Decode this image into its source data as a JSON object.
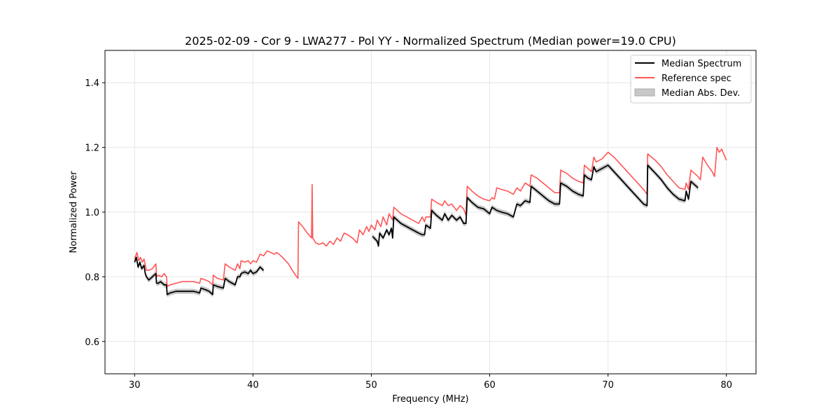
{
  "chart_data": {
    "type": "line",
    "title": "2025-02-09 - Cor 9 - LWA277 - Pol YY - Normalized Spectrum (Median power=19.0 CPU)",
    "xlabel": "Frequency (MHz)",
    "ylabel": "Normalized Power",
    "xlim": [
      27.5,
      82.5
    ],
    "ylim": [
      0.5,
      1.5
    ],
    "xticks": [
      30,
      40,
      50,
      60,
      70,
      80
    ],
    "yticks": [
      0.6,
      0.8,
      1.0,
      1.2,
      1.4
    ],
    "grid": true,
    "legend_position": "top-right",
    "colors": {
      "median": "#000000",
      "reference": "#ff5555",
      "mad": "#c8c8c8"
    },
    "series": [
      {
        "name": "Median Spectrum",
        "segments": [
          {
            "x": [
              30.0,
              30.15,
              30.3,
              30.45,
              30.6,
              30.8,
              30.9,
              31.0,
              31.2,
              31.5,
              31.8,
              31.85,
              32.0,
              32.2,
              32.5,
              32.7,
              32.75,
              33.0,
              33.5,
              34.0,
              34.5,
              35.0,
              35.5,
              35.6,
              36.0,
              36.3,
              36.6,
              36.65,
              37.0,
              37.5,
              37.65,
              38.0,
              38.5,
              38.7,
              38.9,
              39.0,
              39.3,
              39.6,
              39.8,
              40.0,
              40.3,
              40.6,
              40.9
            ],
            "y": [
              0.845,
              0.86,
              0.83,
              0.845,
              0.825,
              0.835,
              0.81,
              0.8,
              0.79,
              0.8,
              0.81,
              0.78,
              0.78,
              0.785,
              0.775,
              0.775,
              0.745,
              0.75,
              0.755,
              0.755,
              0.755,
              0.755,
              0.75,
              0.765,
              0.76,
              0.755,
              0.745,
              0.775,
              0.77,
              0.765,
              0.795,
              0.785,
              0.775,
              0.8,
              0.8,
              0.81,
              0.815,
              0.81,
              0.82,
              0.81,
              0.815,
              0.83,
              0.82
            ]
          },
          {
            "x": [
              50.1,
              50.5,
              50.6,
              50.7,
              51.0,
              51.3,
              51.5,
              51.7,
              51.8,
              51.9,
              52.5,
              53.0,
              53.5,
              54.0,
              54.3,
              54.5,
              54.6,
              55.0,
              55.1,
              55.5,
              56.0,
              56.2,
              56.5,
              56.8,
              57.2,
              57.5,
              57.8,
              58.0,
              58.1,
              58.5,
              59.0,
              59.5,
              60.0,
              60.2,
              60.4,
              60.6,
              61.0,
              61.5,
              62.0,
              62.3,
              62.6,
              63.0,
              63.4,
              63.5,
              64.0,
              64.5,
              65.0,
              65.5,
              65.9,
              66.0,
              66.5,
              67.0,
              67.5,
              67.9,
              68.0,
              68.3,
              68.6,
              68.8,
              69.0,
              69.5,
              70.0,
              70.5,
              71.0,
              71.5,
              72.0,
              72.5,
              73.0,
              73.3,
              73.35,
              74.0,
              74.5,
              75.0,
              75.5,
              76.0,
              76.5,
              76.6,
              76.8,
              77.0,
              77.3,
              77.6
            ],
            "y": [
              0.925,
              0.91,
              0.895,
              0.935,
              0.92,
              0.945,
              0.93,
              0.95,
              0.92,
              0.985,
              0.965,
              0.955,
              0.945,
              0.935,
              0.93,
              0.93,
              0.96,
              0.95,
              1.005,
              0.99,
              0.975,
              0.995,
              0.975,
              0.99,
              0.975,
              0.985,
              0.965,
              0.965,
              1.045,
              1.03,
              1.015,
              1.01,
              0.995,
              1.015,
              1.01,
              1.005,
              1.0,
              0.995,
              0.985,
              1.025,
              1.02,
              1.035,
              1.03,
              1.08,
              1.065,
              1.05,
              1.035,
              1.025,
              1.025,
              1.09,
              1.08,
              1.065,
              1.055,
              1.05,
              1.115,
              1.105,
              1.1,
              1.14,
              1.125,
              1.135,
              1.145,
              1.125,
              1.105,
              1.085,
              1.065,
              1.045,
              1.025,
              1.02,
              1.145,
              1.12,
              1.1,
              1.075,
              1.055,
              1.04,
              1.035,
              1.065,
              1.04,
              1.095,
              1.085,
              1.075
            ]
          }
        ]
      },
      {
        "name": "Reference spec",
        "x": [
          30.0,
          30.2,
          30.35,
          30.5,
          30.65,
          30.8,
          31.0,
          31.2,
          31.5,
          31.8,
          31.85,
          32.0,
          32.3,
          32.5,
          32.7,
          32.75,
          33.0,
          33.5,
          34.0,
          34.5,
          35.0,
          35.5,
          35.6,
          36.0,
          36.3,
          36.6,
          36.65,
          37.0,
          37.5,
          37.65,
          38.0,
          38.5,
          38.7,
          38.9,
          39.0,
          39.3,
          39.6,
          39.8,
          40.0,
          40.3,
          40.6,
          40.9,
          41.2,
          41.5,
          41.8,
          42.0,
          42.2,
          42.5,
          43.0,
          43.5,
          43.8,
          43.85,
          44.2,
          44.6,
          44.95,
          45.0,
          45.05,
          45.3,
          45.6,
          45.9,
          46.2,
          46.5,
          46.8,
          47.1,
          47.4,
          47.7,
          48.0,
          48.4,
          48.8,
          49.0,
          49.3,
          49.6,
          49.8,
          50.0,
          50.3,
          50.5,
          50.8,
          51.0,
          51.3,
          51.5,
          51.8,
          51.9,
          52.5,
          53.0,
          53.5,
          54.0,
          54.3,
          54.5,
          54.6,
          55.0,
          55.1,
          55.5,
          56.0,
          56.2,
          56.5,
          56.8,
          57.2,
          57.5,
          57.8,
          58.0,
          58.1,
          58.5,
          59.0,
          59.5,
          60.0,
          60.2,
          60.4,
          60.6,
          61.0,
          61.5,
          62.0,
          62.3,
          62.6,
          63.0,
          63.4,
          63.5,
          64.0,
          64.5,
          65.0,
          65.5,
          65.9,
          66.0,
          66.5,
          67.0,
          67.5,
          67.9,
          68.0,
          68.3,
          68.6,
          68.8,
          69.0,
          69.5,
          70.0,
          70.5,
          71.0,
          71.5,
          72.0,
          72.5,
          73.0,
          73.3,
          73.35,
          74.0,
          74.5,
          75.0,
          75.5,
          76.0,
          76.5,
          76.6,
          76.8,
          77.0,
          77.3,
          77.6,
          77.8,
          78.0,
          78.4,
          78.8,
          79.0,
          79.2,
          79.4,
          79.6,
          80.0
        ],
        "y": [
          0.855,
          0.875,
          0.85,
          0.86,
          0.845,
          0.855,
          0.82,
          0.82,
          0.825,
          0.84,
          0.8,
          0.805,
          0.8,
          0.81,
          0.8,
          0.77,
          0.775,
          0.78,
          0.785,
          0.785,
          0.785,
          0.78,
          0.795,
          0.79,
          0.785,
          0.775,
          0.805,
          0.795,
          0.79,
          0.84,
          0.83,
          0.82,
          0.84,
          0.825,
          0.85,
          0.845,
          0.85,
          0.84,
          0.85,
          0.845,
          0.87,
          0.865,
          0.88,
          0.875,
          0.87,
          0.875,
          0.87,
          0.86,
          0.84,
          0.81,
          0.795,
          0.97,
          0.955,
          0.935,
          0.92,
          1.085,
          0.92,
          0.905,
          0.9,
          0.905,
          0.895,
          0.91,
          0.9,
          0.92,
          0.91,
          0.935,
          0.93,
          0.92,
          0.905,
          0.945,
          0.93,
          0.955,
          0.94,
          0.96,
          0.945,
          0.975,
          0.955,
          0.985,
          0.96,
          0.995,
          0.975,
          1.015,
          0.995,
          0.985,
          0.975,
          0.965,
          0.985,
          0.97,
          0.985,
          0.985,
          1.04,
          1.03,
          1.02,
          1.035,
          1.02,
          1.025,
          1.005,
          1.02,
          1.01,
          0.99,
          1.08,
          1.065,
          1.05,
          1.04,
          1.035,
          1.045,
          1.04,
          1.075,
          1.07,
          1.065,
          1.055,
          1.075,
          1.065,
          1.09,
          1.08,
          1.115,
          1.105,
          1.09,
          1.075,
          1.06,
          1.06,
          1.13,
          1.12,
          1.105,
          1.095,
          1.09,
          1.145,
          1.135,
          1.125,
          1.17,
          1.155,
          1.165,
          1.185,
          1.17,
          1.15,
          1.13,
          1.11,
          1.09,
          1.07,
          1.055,
          1.18,
          1.16,
          1.14,
          1.115,
          1.095,
          1.075,
          1.07,
          1.09,
          1.07,
          1.13,
          1.12,
          1.11,
          1.1,
          1.17,
          1.145,
          1.125,
          1.11,
          1.2,
          1.185,
          1.195,
          1.16
        ]
      }
    ],
    "mad_band": {
      "name": "Median Abs. Dev.",
      "halfwidth": 0.008
    }
  }
}
